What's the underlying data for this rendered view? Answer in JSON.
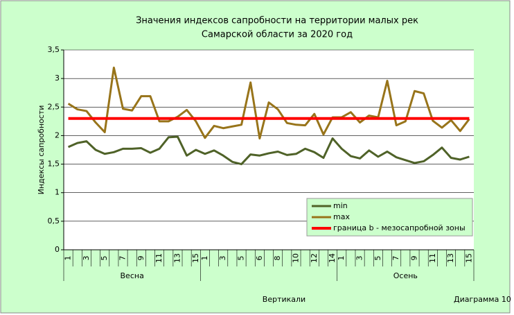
{
  "chart_data": {
    "type": "line",
    "title": [
      "Значения индексов сапробности на территории малых рек",
      "Самарской области за 2020 год"
    ],
    "y_label": "Индексы сапробности",
    "x_label": "Вертикали",
    "annotation": "Диаграмма 10",
    "categories": [
      "1",
      null,
      "3",
      null,
      "5",
      null,
      "7",
      null,
      "9",
      null,
      "11",
      null,
      "13",
      null,
      "15",
      "1",
      null,
      "3",
      null,
      "5",
      null,
      "6",
      null,
      "8",
      null,
      "10",
      null,
      "12",
      null,
      "14",
      "1",
      null,
      "3",
      null,
      "5",
      null,
      "7",
      null,
      "9",
      null,
      "11",
      null,
      "13",
      null,
      "15"
    ],
    "group_labels": [
      "Весна",
      null,
      "Осень"
    ],
    "series": [
      {
        "name": "min",
        "color": "#4f6228",
        "values": [
          1.8,
          1.87,
          1.9,
          1.75,
          1.68,
          1.71,
          1.77,
          1.77,
          1.78,
          1.7,
          1.77,
          1.97,
          1.98,
          1.65,
          1.75,
          1.68,
          1.74,
          1.65,
          1.54,
          1.5,
          1.67,
          1.65,
          1.69,
          1.72,
          1.66,
          1.68,
          1.77,
          1.71,
          1.61,
          1.95,
          1.77,
          1.64,
          1.6,
          1.74,
          1.63,
          1.72,
          1.62,
          1.57,
          1.52,
          1.55,
          1.66,
          1.79,
          1.61,
          1.58,
          1.63
        ]
      },
      {
        "name": "max",
        "color": "#98741a",
        "values": [
          2.56,
          2.46,
          2.43,
          2.23,
          2.06,
          3.19,
          2.47,
          2.44,
          2.69,
          2.69,
          2.25,
          2.25,
          2.33,
          2.45,
          2.25,
          1.96,
          2.17,
          2.13,
          2.16,
          2.19,
          2.93,
          1.95,
          2.58,
          2.46,
          2.22,
          2.19,
          2.18,
          2.38,
          2.02,
          2.32,
          2.32,
          2.41,
          2.23,
          2.35,
          2.32,
          2.96,
          2.18,
          2.25,
          2.78,
          2.74,
          2.26,
          2.14,
          2.27,
          2.08,
          2.29
        ]
      },
      {
        "name": "граница b - мезосапробной зоны",
        "color": "#ff0000",
        "width": 4,
        "values": [
          2.3,
          2.3,
          2.3,
          2.3,
          2.3,
          2.3,
          2.3,
          2.3,
          2.3,
          2.3,
          2.3,
          2.3,
          2.3,
          2.3,
          2.3,
          2.3,
          2.3,
          2.3,
          2.3,
          2.3,
          2.3,
          2.3,
          2.3,
          2.3,
          2.3,
          2.3,
          2.3,
          2.3,
          2.3,
          2.3,
          2.3,
          2.3,
          2.3,
          2.3,
          2.3,
          2.3,
          2.3,
          2.3,
          2.3,
          2.3,
          2.3,
          2.3,
          2.3,
          2.3,
          2.3
        ]
      }
    ],
    "ylim": [
      0,
      3.5
    ],
    "yticks": [
      0,
      {
        "value": 0.5,
        "label": "0,5"
      },
      1,
      {
        "value": 1.5,
        "label": "1,5"
      },
      2,
      {
        "value": 2.5,
        "label": "2,5"
      },
      3,
      {
        "value": 3.5,
        "label": "3,5"
      }
    ],
    "grid": true
  }
}
